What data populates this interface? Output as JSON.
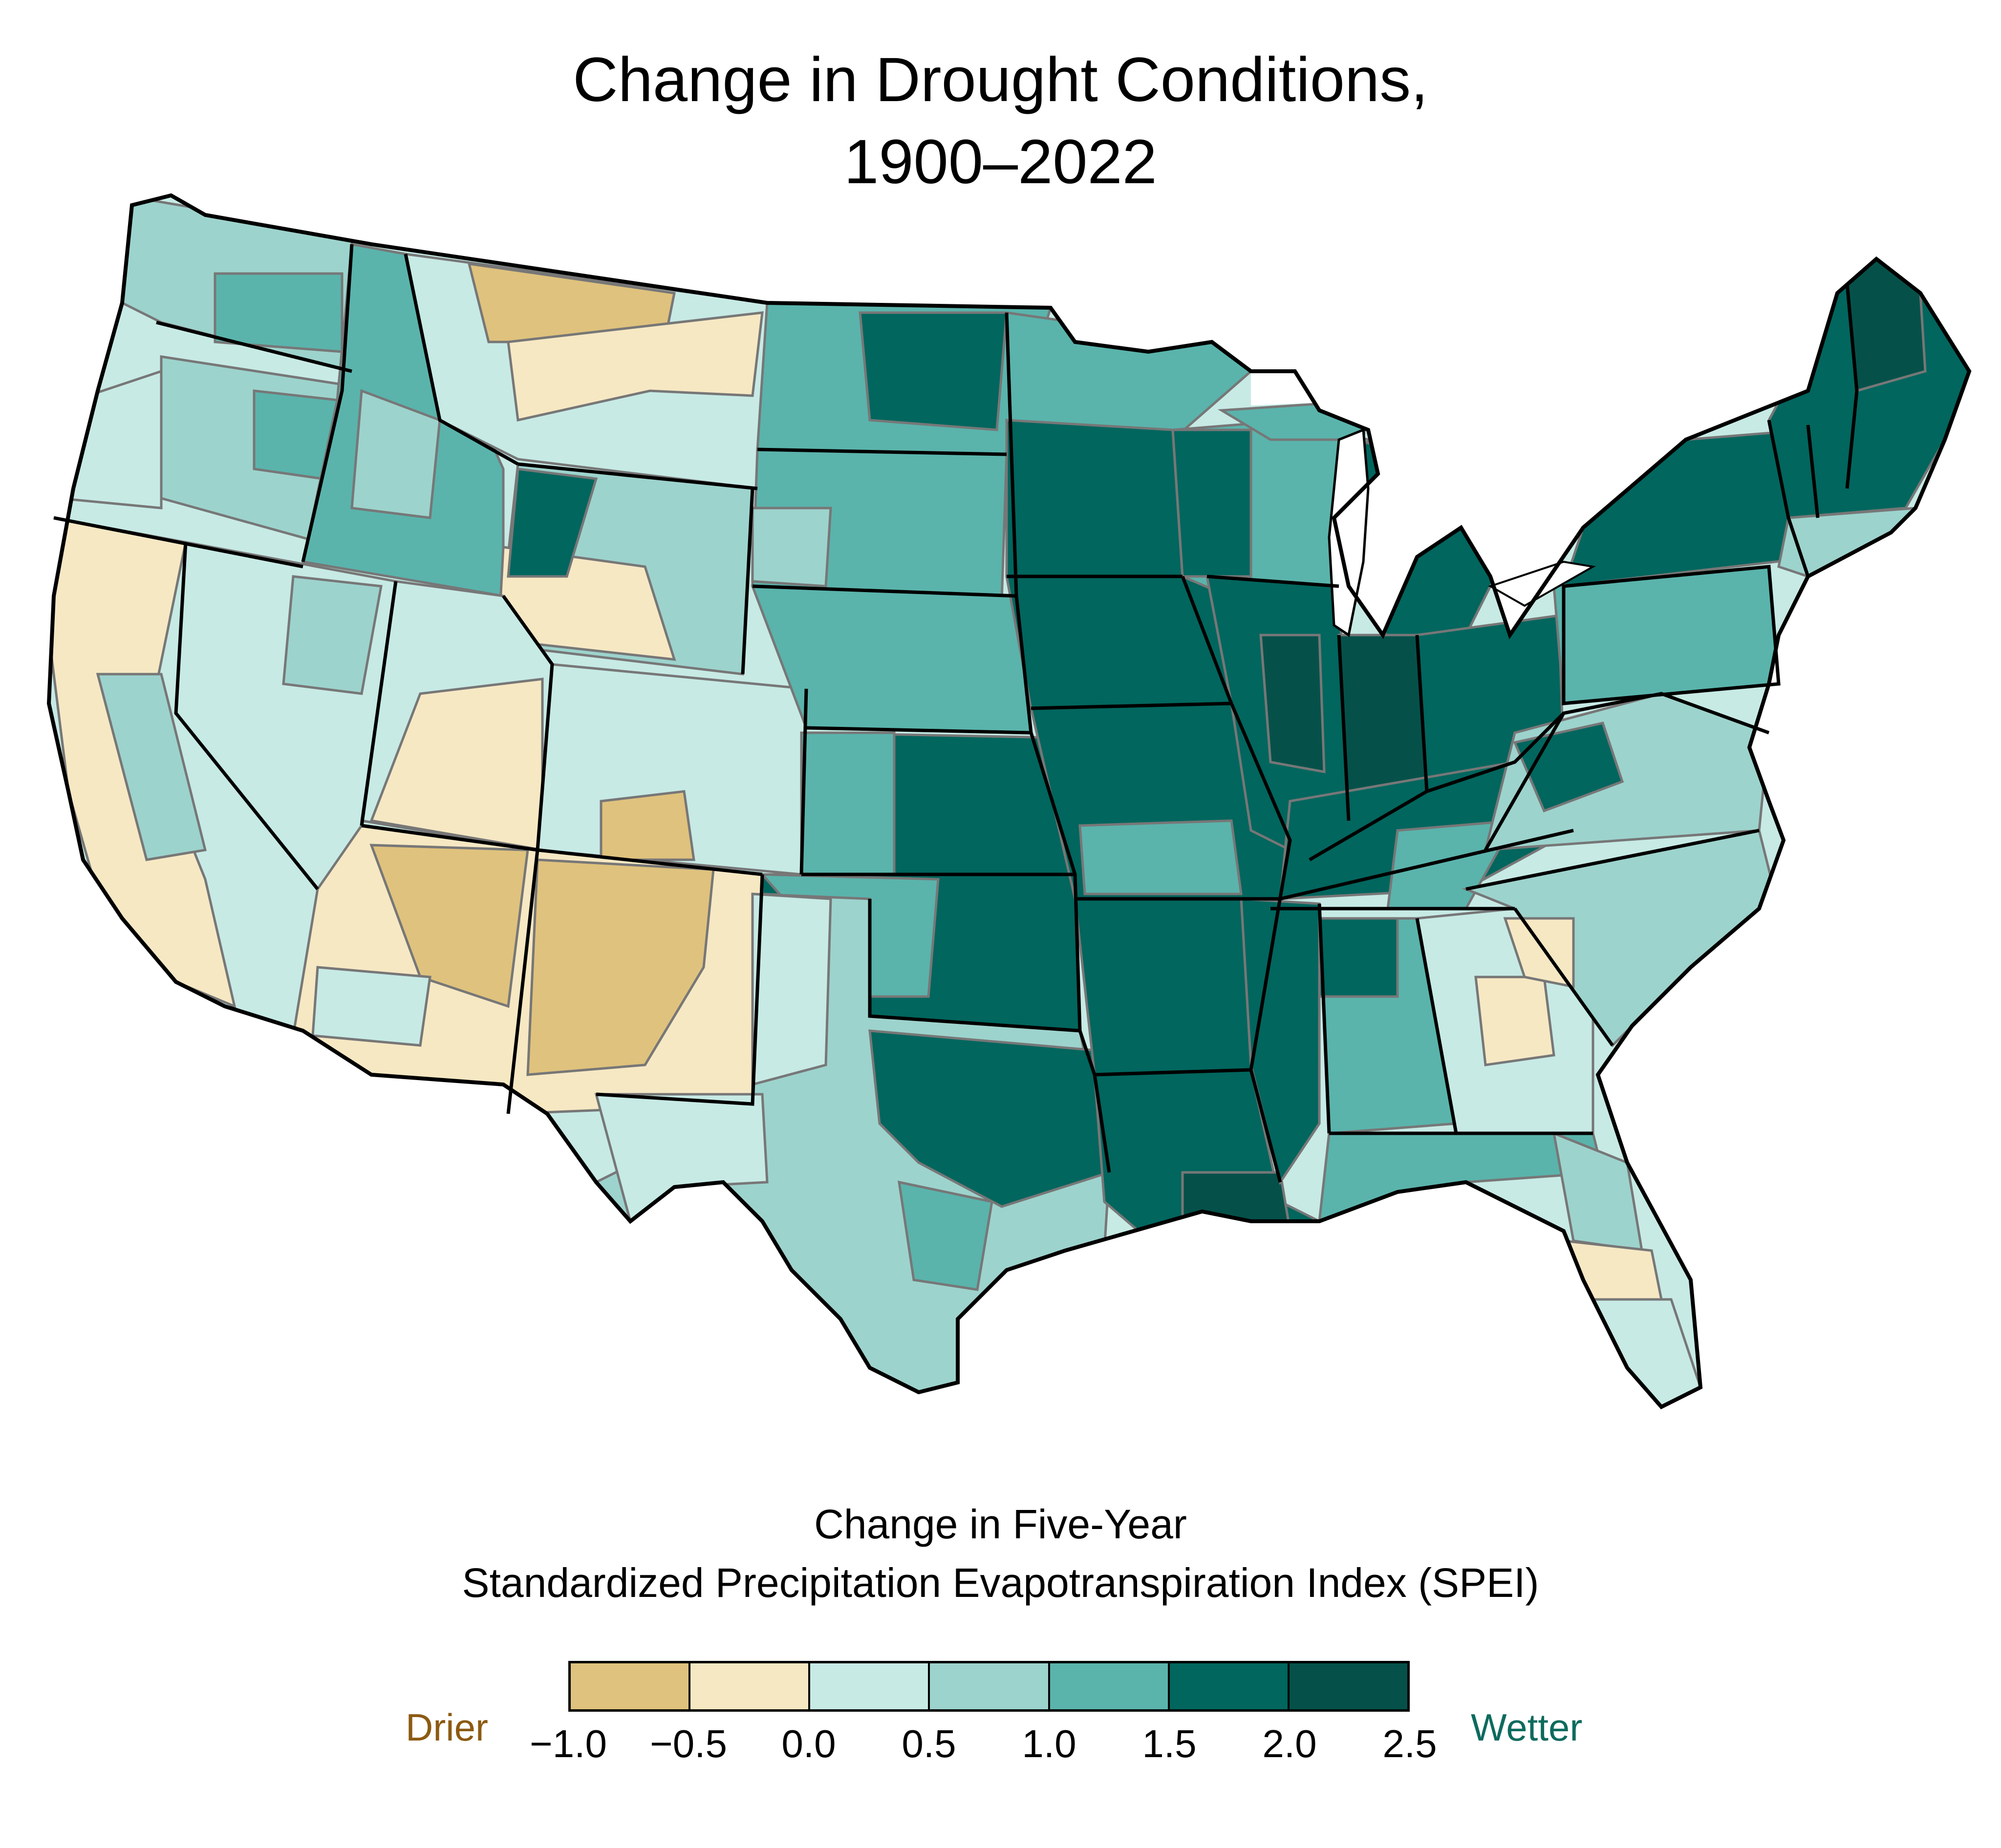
{
  "title": {
    "line1": "Change in Drought Conditions,",
    "line2": "1900–2022"
  },
  "map": {
    "region": "Contiguous United States",
    "unit": "climate divisions",
    "border_color": "#000000",
    "division_border_color": "#777777",
    "pattern_summary": {
      "drier_areas": [
        "Southwest",
        "Montana",
        "Wyoming",
        "California coast",
        "Florida peninsula (part)",
        "Georgia (part)"
      ],
      "wetter_areas": [
        "Midwest",
        "Great Lakes",
        "Mississippi Valley",
        "Northeast",
        "Texas interior",
        "Louisiana"
      ]
    }
  },
  "legend": {
    "title_line1": "Change in Five-Year",
    "title_line2": "Standardized Precipitation Evapotranspiration Index (SPEI)",
    "bins": [
      {
        "min": -1.0,
        "max": -0.5,
        "color": "#dfc27d"
      },
      {
        "min": -0.5,
        "max": 0.0,
        "color": "#f6e8c3"
      },
      {
        "min": 0.0,
        "max": 0.5,
        "color": "#c7eae5"
      },
      {
        "min": 0.5,
        "max": 1.0,
        "color": "#9dd3cd"
      },
      {
        "min": 1.0,
        "max": 1.5,
        "color": "#5ab4ac"
      },
      {
        "min": 1.5,
        "max": 2.0,
        "color": "#01665e"
      },
      {
        "min": 2.0,
        "max": 2.5,
        "color": "#05514a"
      }
    ],
    "ticks": [
      "−1.0",
      "−0.5",
      "0.0",
      "0.5",
      "1.0",
      "1.5",
      "2.0",
      "2.5"
    ],
    "drier_label": "Drier",
    "wetter_label": "Wetter",
    "drier_color": "#8c5a12",
    "wetter_color": "#0d6b5e"
  }
}
